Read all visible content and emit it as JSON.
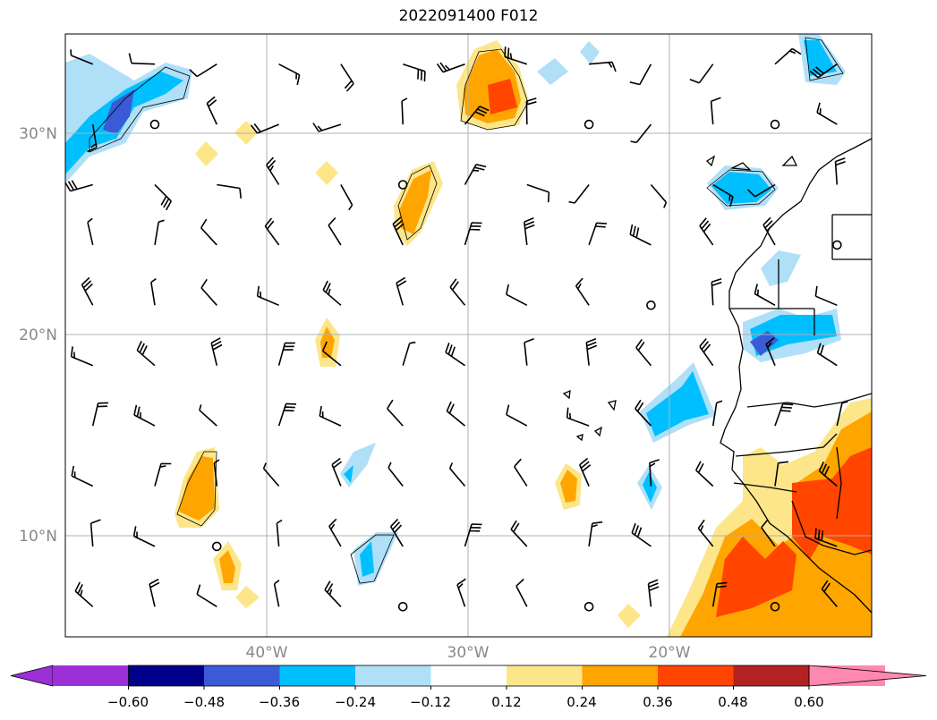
{
  "title": "2022091400 F012",
  "map": {
    "lat_labels": [
      "30°N",
      "20°N",
      "10°N"
    ],
    "lon_labels": [
      "40°W",
      "30°W",
      "20°W"
    ],
    "gridlines": true
  },
  "colorbar": {
    "ticks": [
      "−0.60",
      "−0.48",
      "−0.36",
      "−0.24",
      "−0.12",
      "0.12",
      "0.24",
      "0.36",
      "0.48",
      "0.60"
    ],
    "colors": [
      "#9b30d6",
      "#00008b",
      "#3b5bd6",
      "#00bfff",
      "#b0e0f8",
      "#ffffff",
      "#fde68a",
      "#ffa500",
      "#ff4500",
      "#b22222",
      "#ff88b0"
    ],
    "extend": "both"
  }
}
